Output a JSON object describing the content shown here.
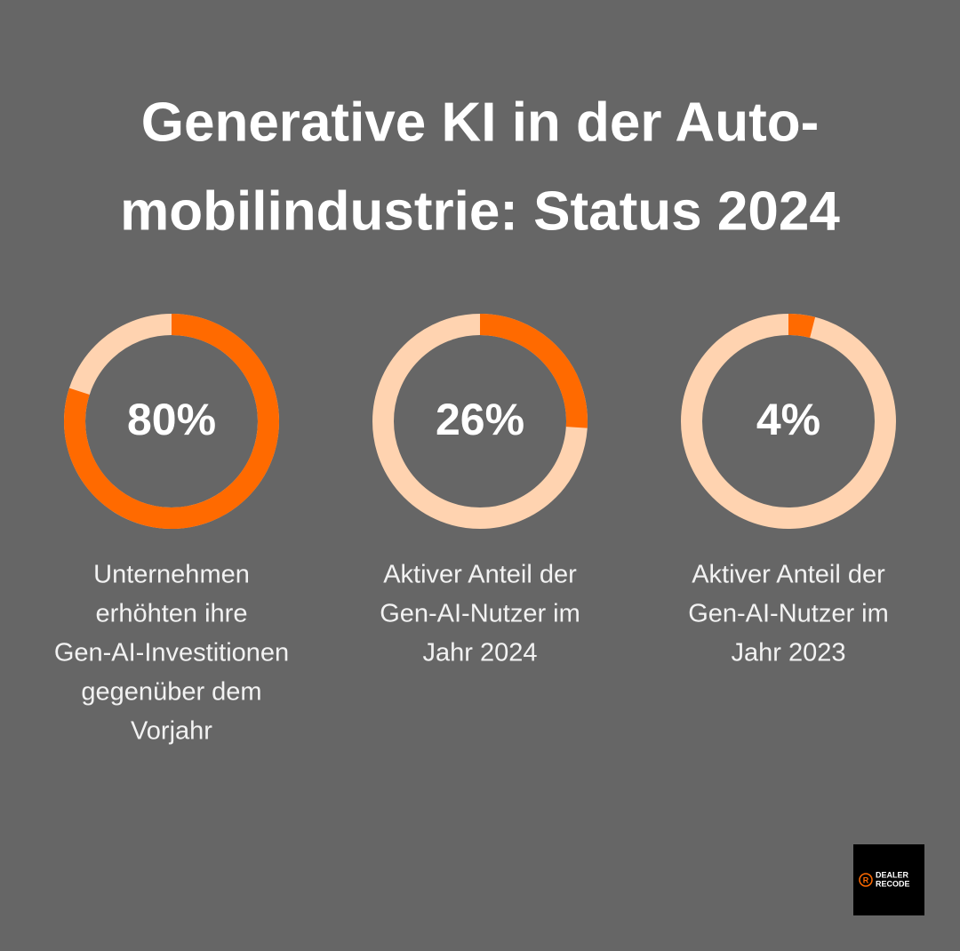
{
  "title": [
    "Generative KI in der Auto-",
    "mobilindustrie: Status 2024"
  ],
  "chart_data": [
    {
      "type": "donut",
      "values": [
        80
      ],
      "value_labels": [
        "80%"
      ],
      "ylim": [
        0,
        100
      ],
      "color": "#ff6a00",
      "track_color": "#ffd3b0",
      "description": [
        "Unternehmen",
        "erhöhten ihre",
        "Gen-AI-Investitionen",
        "gegenüber dem",
        "Vorjahr"
      ]
    },
    {
      "type": "donut",
      "values": [
        26
      ],
      "value_labels": [
        "26%"
      ],
      "ylim": [
        0,
        100
      ],
      "color": "#ff6a00",
      "track_color": "#ffd3b0",
      "description": [
        "Aktiver Anteil der",
        "Gen-AI-Nutzer im",
        "Jahr 2024"
      ]
    },
    {
      "type": "donut",
      "values": [
        4
      ],
      "value_labels": [
        "4%"
      ],
      "ylim": [
        0,
        100
      ],
      "color": "#ff6a00",
      "track_color": "#ffd3b0",
      "description": [
        "Aktiver Anteil der",
        "Gen-AI-Nutzer im",
        "Jahr 2023"
      ]
    }
  ],
  "logo": {
    "mark": "R",
    "lines": [
      "DEALER",
      "RECODE"
    ]
  }
}
